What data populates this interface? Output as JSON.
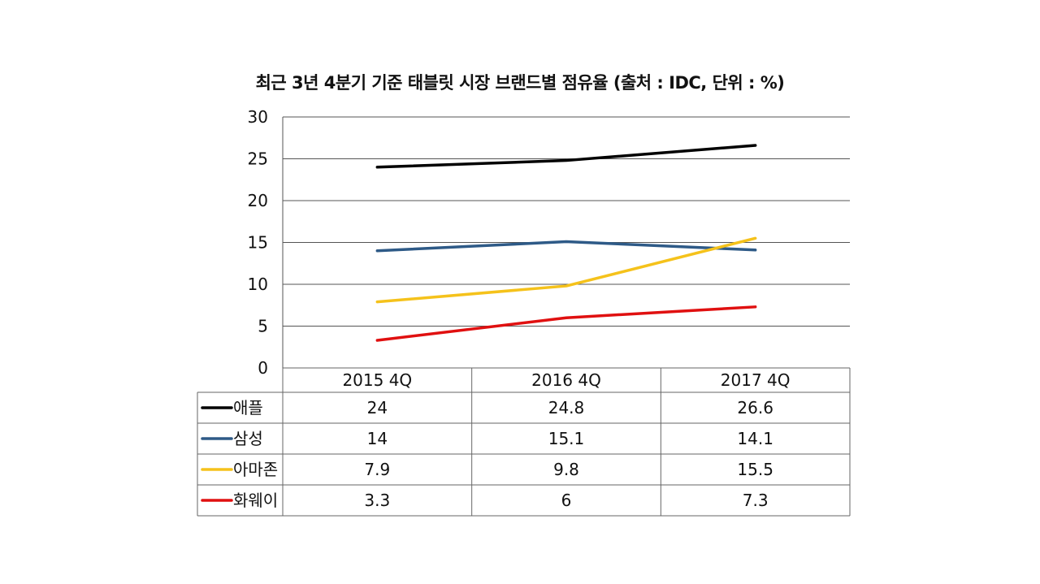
{
  "chart_data": {
    "type": "line",
    "title": "최근 3년 4분기 기준 태블릿 시장 브랜드별 점유율 (출처 : IDC, 단위 : %)",
    "categories": [
      "2015 4Q",
      "2016 4Q",
      "2017 4Q"
    ],
    "ylim": [
      0,
      30
    ],
    "yticks": [
      0,
      5,
      10,
      15,
      20,
      25,
      30
    ],
    "grid": true,
    "legend": "data-table",
    "series": [
      {
        "name": "애플",
        "color": "#000000",
        "values": [
          24,
          24.8,
          26.6
        ]
      },
      {
        "name": "삼성",
        "color": "#2e5a87",
        "values": [
          14,
          15.1,
          14.1
        ]
      },
      {
        "name": "아마존",
        "color": "#f5c21b",
        "values": [
          7.9,
          9.8,
          15.5
        ]
      },
      {
        "name": "화웨이",
        "color": "#e01010",
        "values": [
          3.3,
          6,
          7.3
        ]
      }
    ]
  }
}
